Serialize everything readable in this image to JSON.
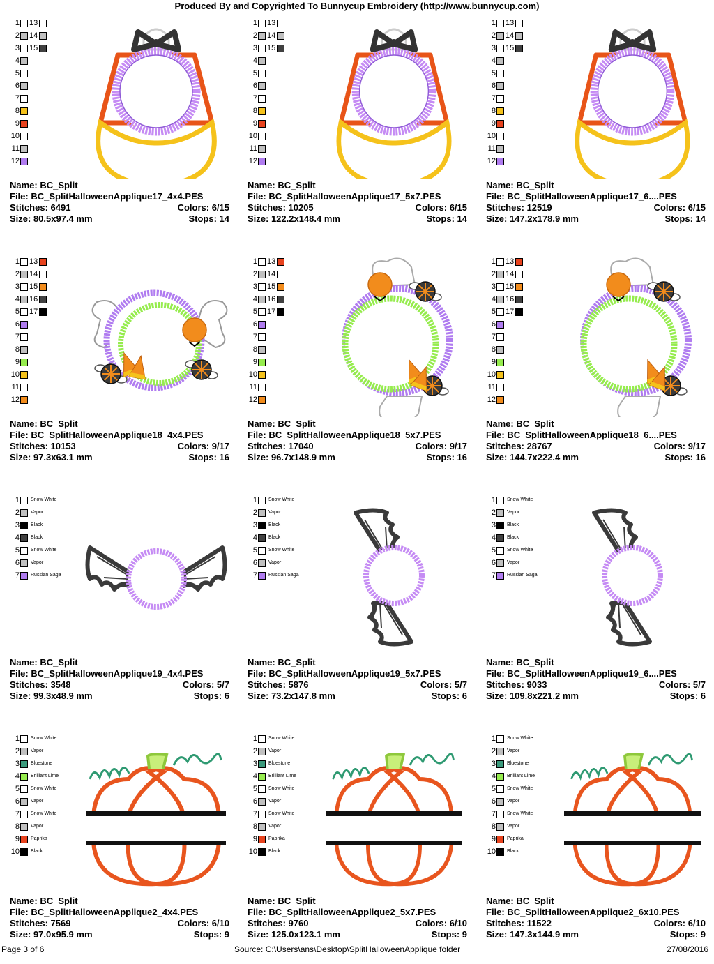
{
  "header": "Produced By and Copyrighted To Bunnycup Embroidery (http://www.bunnycup.com)",
  "footer": {
    "page": "Page 3 of 6",
    "source": "Source: C:\\Users\\ans\\Desktop\\SplitHalloweenApplique folder",
    "date": "27/08/2016"
  },
  "colors": {
    "white": "#ffffff",
    "vapor": "#c0c0c0",
    "dark": "#404040",
    "black": "#000000",
    "orange": "#f28c1c",
    "red": "#e8431e",
    "gold": "#f5c21b",
    "purple": "#b07cf0",
    "lime": "#96ec4e",
    "teal": "#3a9a7c"
  },
  "rows": [
    {
      "kind": "candy",
      "chips": [
        {
          "n": "1",
          "c": "#ffffff"
        },
        {
          "n": "2",
          "c": "#c0c0c0"
        },
        {
          "n": "3",
          "c": "#ffffff"
        },
        {
          "n": "4",
          "c": "#c0c0c0"
        },
        {
          "n": "5",
          "c": "#ffffff"
        },
        {
          "n": "6",
          "c": "#c0c0c0"
        },
        {
          "n": "7",
          "c": "#ffffff"
        },
        {
          "n": "8",
          "c": "#f5c21b"
        },
        {
          "n": "9",
          "c": "#e8431e"
        },
        {
          "n": "10",
          "c": "#ffffff"
        },
        {
          "n": "11",
          "c": "#c0c0c0"
        },
        {
          "n": "12",
          "c": "#b07cf0"
        },
        {
          "n": "13",
          "c": "#ffffff"
        },
        {
          "n": "14",
          "c": "#c0c0c0"
        },
        {
          "n": "15",
          "c": "#404040"
        }
      ],
      "cells": [
        {
          "name": "Name: BC_Split",
          "file": "File: BC_SplitHalloweenApplique17_4x4.PES",
          "stitches": "Stitches: 6491",
          "colors": "Colors: 6/15",
          "size": "Size: 80.5x97.4 mm",
          "stops": "Stops: 14"
        },
        {
          "name": "Name: BC_Split",
          "file": "File: BC_SplitHalloweenApplique17_5x7.PES",
          "stitches": "Stitches: 10205",
          "colors": "Colors: 6/15",
          "size": "Size: 122.2x148.4 mm",
          "stops": "Stops: 14"
        },
        {
          "name": "Name: BC_Split",
          "file": "File: BC_SplitHalloweenApplique17_6....PES",
          "stitches": "Stitches: 12519",
          "colors": "Colors: 6/15",
          "size": "Size: 147.2x178.9 mm",
          "stops": "Stops: 14"
        }
      ]
    },
    {
      "kind": "wreath",
      "chips": [
        {
          "n": "1",
          "c": "#ffffff"
        },
        {
          "n": "2",
          "c": "#c0c0c0"
        },
        {
          "n": "3",
          "c": "#ffffff"
        },
        {
          "n": "4",
          "c": "#c0c0c0"
        },
        {
          "n": "5",
          "c": "#ffffff"
        },
        {
          "n": "6",
          "c": "#b07cf0"
        },
        {
          "n": "7",
          "c": "#ffffff"
        },
        {
          "n": "8",
          "c": "#c0c0c0"
        },
        {
          "n": "9",
          "c": "#96ec4e"
        },
        {
          "n": "10",
          "c": "#f5c21b"
        },
        {
          "n": "11",
          "c": "#ffffff"
        },
        {
          "n": "12",
          "c": "#f28c1c"
        },
        {
          "n": "13",
          "c": "#e8431e"
        },
        {
          "n": "14",
          "c": "#ffffff"
        },
        {
          "n": "15",
          "c": "#f28c1c"
        },
        {
          "n": "16",
          "c": "#404040"
        },
        {
          "n": "17",
          "c": "#000000"
        }
      ],
      "cells": [
        {
          "name": "Name: BC_Split",
          "file": "File: BC_SplitHalloweenApplique18_4x4.PES",
          "stitches": "Stitches: 10153",
          "colors": "Colors: 9/17",
          "size": "Size: 97.3x63.1 mm",
          "stops": "Stops: 16"
        },
        {
          "name": "Name: BC_Split",
          "file": "File: BC_SplitHalloweenApplique18_5x7.PES",
          "stitches": "Stitches: 17040",
          "colors": "Colors: 9/17",
          "size": "Size: 96.7x148.9 mm",
          "stops": "Stops: 16"
        },
        {
          "name": "Name: BC_Split",
          "file": "File: BC_SplitHalloweenApplique18_6....PES",
          "stitches": "Stitches: 28767",
          "colors": "Colors: 9/17",
          "size": "Size: 144.7x222.4 mm",
          "stops": "Stops: 16"
        }
      ]
    },
    {
      "kind": "bat",
      "chips": [
        {
          "n": "1",
          "c": "#ffffff",
          "name": "Snow White"
        },
        {
          "n": "2",
          "c": "#c0c0c0",
          "name": "Vapor"
        },
        {
          "n": "3",
          "c": "#000000",
          "name": "Black"
        },
        {
          "n": "4",
          "c": "#404040",
          "name": "Black"
        },
        {
          "n": "5",
          "c": "#ffffff",
          "name": "Snow White"
        },
        {
          "n": "6",
          "c": "#c0c0c0",
          "name": "Vapor"
        },
        {
          "n": "7",
          "c": "#b07cf0",
          "name": "Russian Saga"
        }
      ],
      "cells": [
        {
          "name": "Name: BC_Split",
          "file": "File: BC_SplitHalloweenApplique19_4x4.PES",
          "stitches": "Stitches: 3548",
          "colors": "Colors: 5/7",
          "size": "Size: 99.3x48.9 mm",
          "stops": "Stops: 6"
        },
        {
          "name": "Name: BC_Split",
          "file": "File: BC_SplitHalloweenApplique19_5x7.PES",
          "stitches": "Stitches: 5876",
          "colors": "Colors: 5/7",
          "size": "Size: 73.2x147.8 mm",
          "stops": "Stops: 6"
        },
        {
          "name": "Name: BC_Split",
          "file": "File: BC_SplitHalloweenApplique19_6....PES",
          "stitches": "Stitches: 9033",
          "colors": "Colors: 5/7",
          "size": "Size: 109.8x221.2 mm",
          "stops": "Stops: 6"
        }
      ]
    },
    {
      "kind": "pumpkin",
      "chips": [
        {
          "n": "1",
          "c": "#ffffff",
          "name": "Snow White"
        },
        {
          "n": "2",
          "c": "#c0c0c0",
          "name": "Vapor"
        },
        {
          "n": "3",
          "c": "#3a9a7c",
          "name": "Bluestone"
        },
        {
          "n": "4",
          "c": "#96ec4e",
          "name": "Brilliant Lime"
        },
        {
          "n": "5",
          "c": "#ffffff",
          "name": "Snow White"
        },
        {
          "n": "6",
          "c": "#c0c0c0",
          "name": "Vapor"
        },
        {
          "n": "7",
          "c": "#ffffff",
          "name": "Snow White"
        },
        {
          "n": "8",
          "c": "#c0c0c0",
          "name": "Vapor"
        },
        {
          "n": "9",
          "c": "#e8431e",
          "name": "Paprika"
        },
        {
          "n": "10",
          "c": "#000000",
          "name": "Black"
        }
      ],
      "cells": [
        {
          "name": "Name: BC_Split",
          "file": "File: BC_SplitHalloweenApplique2_4x4.PES",
          "stitches": "Stitches: 7569",
          "colors": "Colors: 6/10",
          "size": "Size: 97.0x95.9 mm",
          "stops": "Stops: 9"
        },
        {
          "name": "Name: BC_Split",
          "file": "File: BC_SplitHalloweenApplique2_5x7.PES",
          "stitches": "Stitches: 9760",
          "colors": "Colors: 6/10",
          "size": "Size: 125.0x123.1 mm",
          "stops": "Stops: 9"
        },
        {
          "name": "Name: BC_Split",
          "file": "File: BC_SplitHalloweenApplique2_6x10.PES",
          "stitches": "Stitches: 11522",
          "colors": "Colors: 6/10",
          "size": "Size: 147.3x144.9 mm",
          "stops": "Stops: 9"
        }
      ]
    }
  ]
}
